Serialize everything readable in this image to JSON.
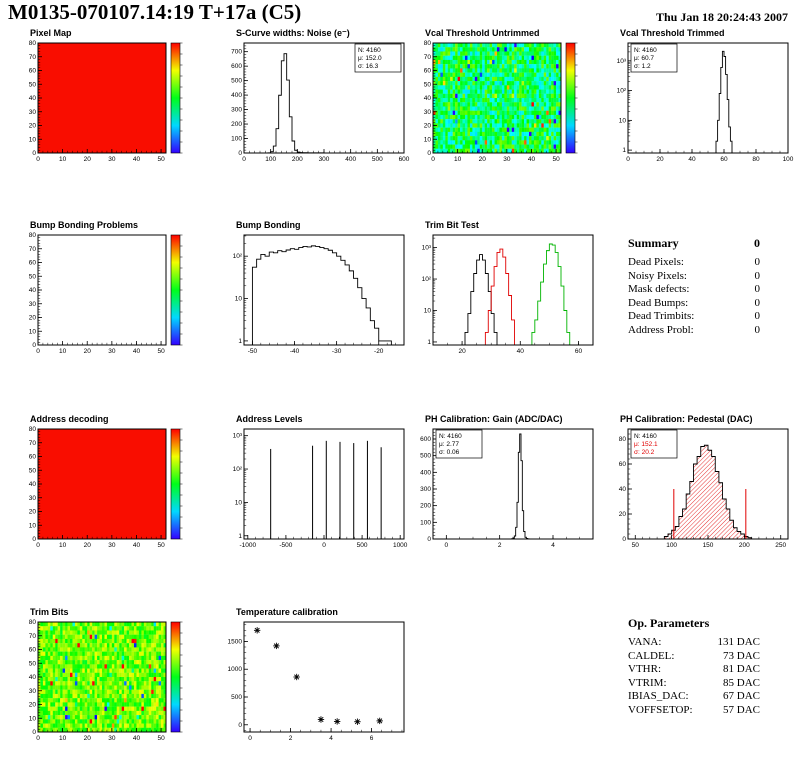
{
  "header": {
    "title": "M0135-070107.14:19 T+17a (C5)",
    "date": "Thu Jan 18 20:24:43 2007"
  },
  "summary": {
    "title": "Summary",
    "total": "0",
    "rows": [
      {
        "label": "Dead Pixels:",
        "value": "0"
      },
      {
        "label": "Noisy Pixels:",
        "value": "0"
      },
      {
        "label": "Mask defects:",
        "value": "0"
      },
      {
        "label": "Dead Bumps:",
        "value": "0"
      },
      {
        "label": "Dead Trimbits:",
        "value": "0"
      },
      {
        "label": "Address Probl:",
        "value": "0"
      }
    ]
  },
  "op_parameters": {
    "title": "Op. Parameters",
    "rows": [
      {
        "label": "VANA:",
        "value": "131 DAC"
      },
      {
        "label": "CALDEL:",
        "value": "73 DAC"
      },
      {
        "label": "VTHR:",
        "value": "81 DAC"
      },
      {
        "label": "VTRIM:",
        "value": "85 DAC"
      },
      {
        "label": "IBIAS_DAC:",
        "value": "67 DAC"
      },
      {
        "label": "VOFFSETOP:",
        "value": "57 DAC"
      }
    ]
  },
  "colors": {
    "uniform_red": "#f90d00",
    "stat_red": "#e00000",
    "trim_green": "#00b400"
  },
  "chart_data": [
    {
      "id": "pixel_map",
      "type": "heatmap",
      "title": "Pixel Map",
      "fill": "uniform",
      "fill_color": "#f90d00",
      "colorbar": true,
      "x": {
        "min": 0,
        "max": 52,
        "ticks": [
          0,
          10,
          20,
          30,
          40,
          50
        ],
        "minor": 2
      },
      "y": {
        "min": 0,
        "max": 80,
        "ticks": [
          0,
          10,
          20,
          30,
          40,
          50,
          60,
          70,
          80
        ],
        "minor": 2
      }
    },
    {
      "id": "scurve_noise",
      "type": "hist",
      "title": "S-Curve widths: Noise (e⁻)",
      "x": {
        "min": 0,
        "max": 600,
        "ticks": [
          0,
          100,
          200,
          300,
          400,
          500,
          600
        ],
        "minor": 20
      },
      "y": {
        "min": 0,
        "max": 760,
        "ticks": [
          0,
          100,
          200,
          300,
          400,
          500,
          600,
          700
        ],
        "minor": 20
      },
      "bins": {
        "start": 90,
        "width": 10,
        "counts": [
          1,
          9,
          48,
          168,
          399,
          637,
          686,
          504,
          250,
          83,
          19,
          6,
          3,
          2,
          2,
          1,
          1,
          1,
          1,
          1,
          1
        ]
      },
      "stats": {
        "corner": "tr",
        "lines": [
          {
            "text": "N: 4160"
          },
          {
            "text": "μ: 152.0"
          },
          {
            "text": "σ: 16.3"
          }
        ]
      }
    },
    {
      "id": "vcal_untrimmed",
      "type": "heatmap",
      "title": "Vcal Threshold Untrimmed",
      "fill": "noise",
      "colorbar": true,
      "noise": {
        "base": 0.45,
        "spread": 0.38,
        "seed": 12345
      },
      "x": {
        "min": 0,
        "max": 52,
        "ticks": [
          0,
          10,
          20,
          30,
          40,
          50
        ],
        "minor": 2
      },
      "y": {
        "min": 0,
        "max": 80,
        "ticks": [
          0,
          10,
          20,
          30,
          40,
          50,
          60,
          70,
          80
        ],
        "minor": 2
      }
    },
    {
      "id": "vcal_trimmed",
      "type": "hist",
      "title": "Vcal Threshold Trimmed",
      "x": {
        "min": 0,
        "max": 100,
        "ticks": [
          0,
          20,
          40,
          60,
          80,
          100
        ],
        "minor": 5
      },
      "y": {
        "log": true,
        "maxExp": 3.6
      },
      "bins": {
        "start": 55,
        "width": 1,
        "counts": [
          2,
          10,
          80,
          600,
          2100,
          1400,
          350,
          50,
          6,
          2
        ]
      },
      "stats": {
        "corner": "tl",
        "lines": [
          {
            "text": "N: 4160"
          },
          {
            "text": "μ: 60.7"
          },
          {
            "text": "σ:  1.2"
          }
        ]
      }
    },
    {
      "id": "bb_problems",
      "type": "heatmap",
      "title": "Bump Bonding Problems",
      "fill": "empty",
      "colorbar": true,
      "x": {
        "min": 0,
        "max": 52,
        "ticks": [
          0,
          10,
          20,
          30,
          40,
          50
        ],
        "minor": 2
      },
      "y": {
        "min": 0,
        "max": 80,
        "ticks": [
          0,
          10,
          20,
          30,
          40,
          50,
          60,
          70,
          80
        ],
        "minor": 2
      }
    },
    {
      "id": "bump_bonding",
      "type": "hist",
      "title": "Bump Bonding",
      "x": {
        "min": -52,
        "max": -14,
        "ticks": [
          -50,
          -40,
          -30,
          -20
        ],
        "minor": 2
      },
      "y": {
        "log": true,
        "maxExp": 2.5
      },
      "bins": {
        "start": -50,
        "width": 1,
        "counts": [
          55,
          85,
          110,
          100,
          125,
          120,
          135,
          128,
          140,
          150,
          145,
          160,
          170,
          165,
          175,
          170,
          160,
          150,
          138,
          120,
          100,
          80,
          62,
          45,
          30,
          18,
          10,
          6,
          3,
          2,
          1,
          1,
          1
        ]
      }
    },
    {
      "id": "trim_bit_test",
      "type": "hist",
      "title": "Trim Bit Test",
      "x": {
        "min": 10,
        "max": 65,
        "ticks": [
          20,
          40,
          60
        ],
        "minor": 5
      },
      "y": {
        "log": true,
        "maxExp": 3.4
      },
      "series": [
        {
          "color": "#000000",
          "bins": {
            "start": 21,
            "width": 1,
            "counts": [
              2,
              8,
              40,
              150,
              400,
              600,
              400,
              150,
              40,
              8,
              2
            ]
          }
        },
        {
          "color": "#e00000",
          "bins": {
            "start": 28,
            "width": 1,
            "counts": [
              2,
              10,
              60,
              250,
              700,
              900,
              500,
              150,
              30,
              5
            ]
          }
        },
        {
          "color": "#00b400",
          "bins": {
            "start": 44,
            "width": 1,
            "counts": [
              2,
              5,
              20,
              80,
              300,
              800,
              1300,
              1200,
              700,
              250,
              60,
              10,
              2
            ]
          }
        }
      ]
    },
    {
      "id": "address_decoding",
      "type": "heatmap",
      "title": "Address decoding",
      "fill": "uniform",
      "fill_color": "#f90d00",
      "colorbar": true,
      "x": {
        "min": 0,
        "max": 52,
        "ticks": [
          0,
          10,
          20,
          30,
          40,
          50
        ],
        "minor": 2
      },
      "y": {
        "min": 0,
        "max": 80,
        "ticks": [
          0,
          10,
          20,
          30,
          40,
          50,
          60,
          70,
          80
        ],
        "minor": 2
      }
    },
    {
      "id": "address_levels",
      "type": "spikes",
      "title": "Address Levels",
      "x": {
        "min": -1050,
        "max": 1050,
        "ticks": [
          -1000,
          -500,
          0,
          500,
          1000
        ],
        "minor": 100
      },
      "y": {
        "log": true,
        "maxExp": 3.2
      },
      "spikes": [
        [
          -700,
          400
        ],
        [
          -150,
          500
        ],
        [
          30,
          700
        ],
        [
          210,
          650
        ],
        [
          390,
          600
        ],
        [
          570,
          700
        ],
        [
          750,
          450
        ]
      ]
    },
    {
      "id": "ph_gain",
      "type": "hist",
      "title": "PH Calibration: Gain (ADC/DAC)",
      "x": {
        "min": -0.5,
        "max": 5.5,
        "ticks": [
          0,
          2,
          4
        ],
        "minor": 0.5
      },
      "y": {
        "min": 0,
        "max": 660,
        "ticks": [
          0,
          100,
          200,
          300,
          400,
          500,
          600
        ],
        "minor": 20
      },
      "bins": {
        "start": 2.45,
        "width": 0.05,
        "counts": [
          2,
          6,
          18,
          70,
          220,
          520,
          630,
          470,
          170,
          45,
          10,
          3,
          1
        ]
      },
      "stats": {
        "corner": "tl",
        "lines": [
          {
            "text": "N: 4160"
          },
          {
            "text": "μ: 2.77"
          },
          {
            "text": "σ: 0.06"
          }
        ]
      }
    },
    {
      "id": "ph_pedestal",
      "type": "hist",
      "title": "PH Calibration: Pedestal (DAC)",
      "hatch": true,
      "x": {
        "min": 40,
        "max": 260,
        "ticks": [
          50,
          100,
          150,
          200,
          250
        ],
        "minor": 10
      },
      "y": {
        "min": 0,
        "max": 88,
        "ticks": [
          0,
          20,
          40,
          60,
          80
        ],
        "minor": 4
      },
      "bins": {
        "start": 90,
        "width": 5,
        "counts": [
          2,
          4,
          7,
          10,
          18,
          24,
          36,
          46,
          60,
          66,
          74,
          75,
          71,
          66,
          54,
          45,
          32,
          24,
          15,
          9,
          6,
          4,
          2,
          1
        ]
      },
      "vlines": [
        {
          "x": 103,
          "h": 40
        },
        {
          "x": 202,
          "h": 40
        }
      ],
      "stats": {
        "corner": "tl",
        "lines": [
          {
            "text": "N: 4160"
          },
          {
            "text": "μ: 152.1",
            "color": "#e00000"
          },
          {
            "text": "σ: 20.2",
            "color": "#e00000"
          }
        ]
      }
    },
    {
      "id": "trim_bits",
      "type": "heatmap",
      "title": "Trim Bits",
      "fill": "noise",
      "colorbar": true,
      "noise": {
        "base": 0.62,
        "spread": 0.26,
        "seed": 777
      },
      "x": {
        "min": 0,
        "max": 52,
        "ticks": [
          0,
          10,
          20,
          30,
          40,
          50
        ],
        "minor": 2
      },
      "y": {
        "min": 0,
        "max": 80,
        "ticks": [
          0,
          10,
          20,
          30,
          40,
          50,
          60,
          70,
          80
        ],
        "minor": 2
      }
    },
    {
      "id": "temperature",
      "type": "scatter",
      "title": "Temperature calibration",
      "x": {
        "min": -0.3,
        "max": 7.6,
        "ticks": [
          0,
          2,
          4,
          6
        ],
        "minor": 0.5
      },
      "y": {
        "min": -130,
        "max": 1850,
        "ticks": [
          0,
          500,
          1000,
          1500
        ],
        "minor": 100
      },
      "points": [
        [
          0.35,
          1700
        ],
        [
          1.3,
          1420
        ],
        [
          2.3,
          860
        ],
        [
          3.5,
          95
        ],
        [
          4.3,
          60
        ],
        [
          5.3,
          55
        ],
        [
          6.4,
          70
        ]
      ]
    }
  ]
}
